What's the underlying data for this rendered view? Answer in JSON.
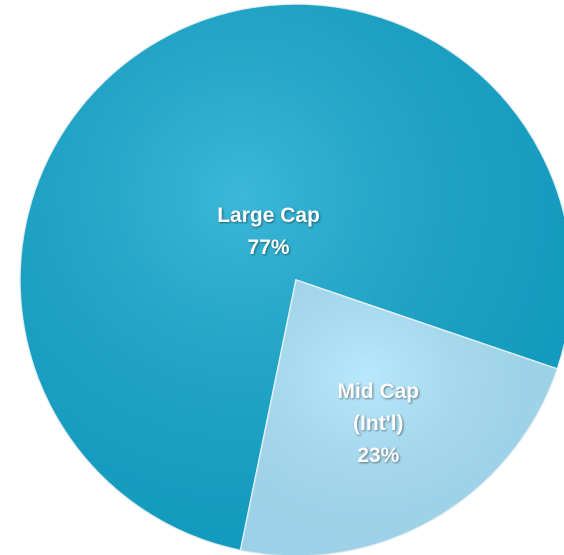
{
  "chart_data": {
    "type": "pie",
    "categories": [
      "Large Cap",
      "Mid Cap (Int'l)"
    ],
    "values": [
      77,
      23
    ],
    "value_labels": [
      "77%",
      "23%"
    ],
    "colors": [
      "#12a8cf",
      "#a9e3fb"
    ]
  }
}
